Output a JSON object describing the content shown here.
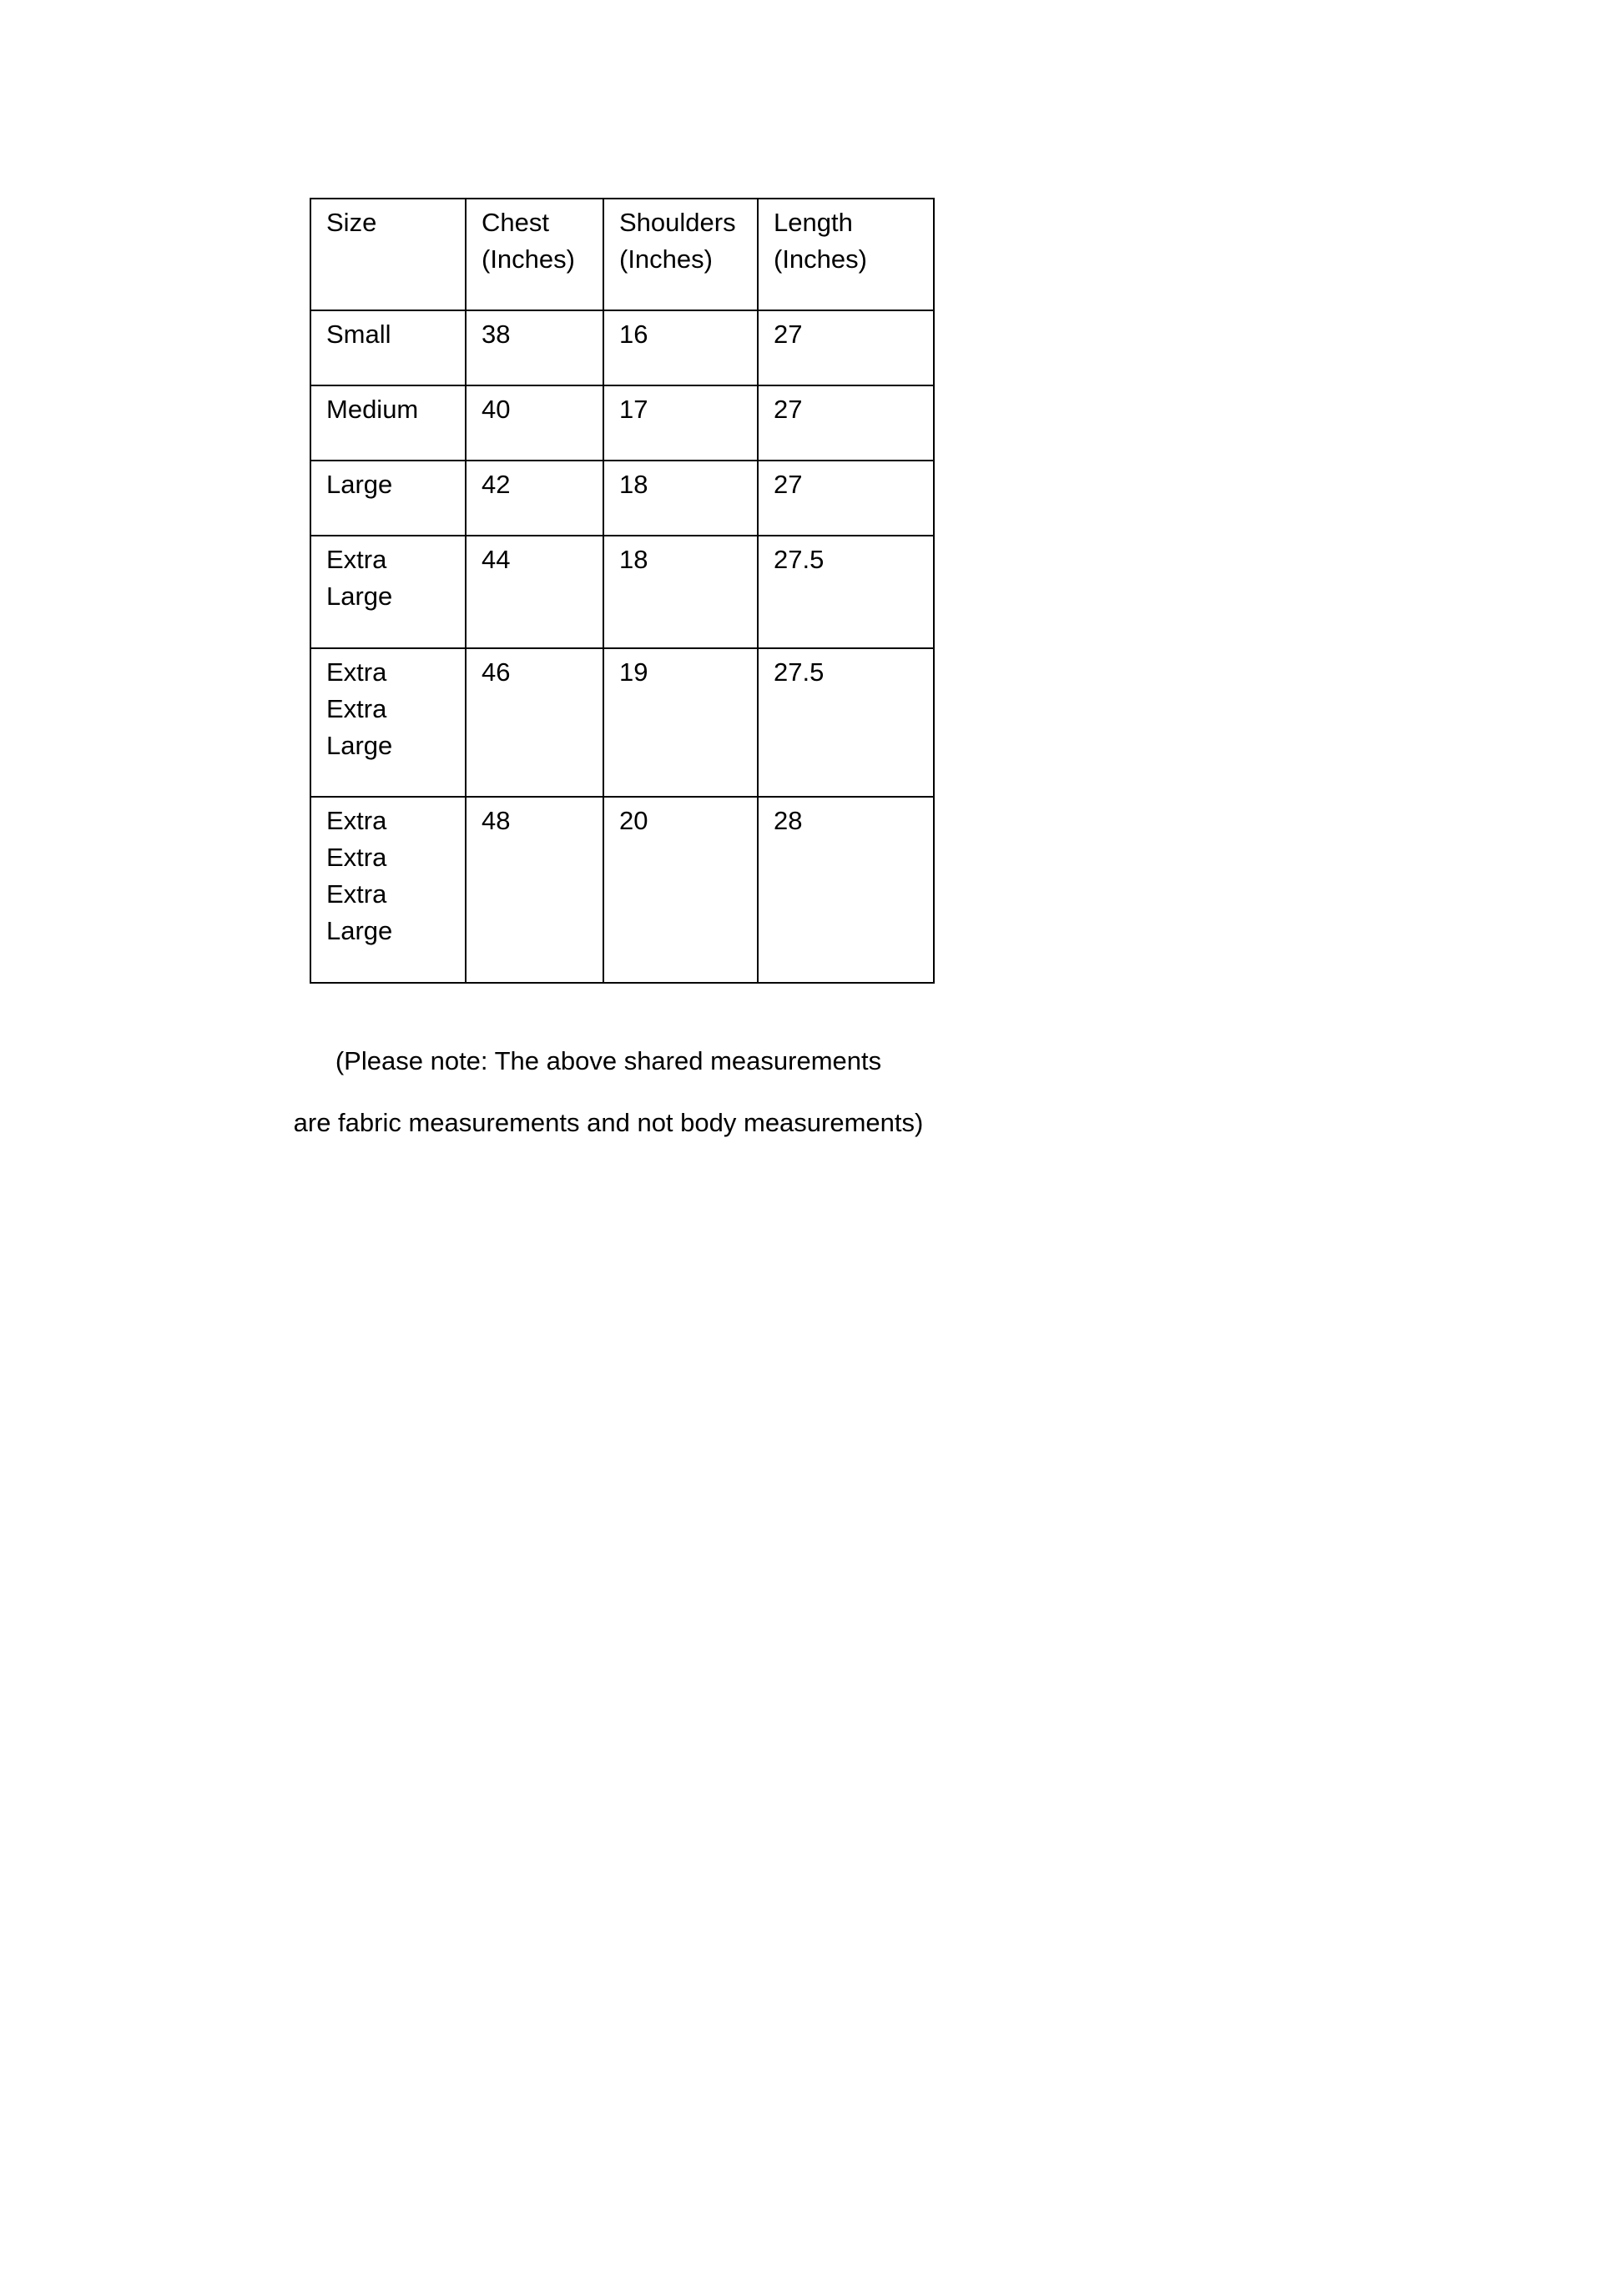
{
  "table": {
    "headers": [
      "Size",
      "Chest\n(Inches)",
      "Shoulders\n(Inches)",
      "Length\n(Inches)"
    ],
    "rows": [
      [
        "Small",
        "38",
        "16",
        "27"
      ],
      [
        "Medium",
        "40",
        "17",
        "27"
      ],
      [
        "Large",
        "42",
        "18",
        "27"
      ],
      [
        "Extra\nLarge",
        "44",
        "18",
        "27.5"
      ],
      [
        "Extra\nExtra\nLarge",
        "46",
        "19",
        "27.5"
      ],
      [
        "Extra\nExtra\nExtra\nLarge",
        "48",
        "20",
        "28"
      ]
    ]
  },
  "note": {
    "line1": "(Please note: The above shared measurements",
    "line2": "are fabric measurements and not body measurements)"
  }
}
